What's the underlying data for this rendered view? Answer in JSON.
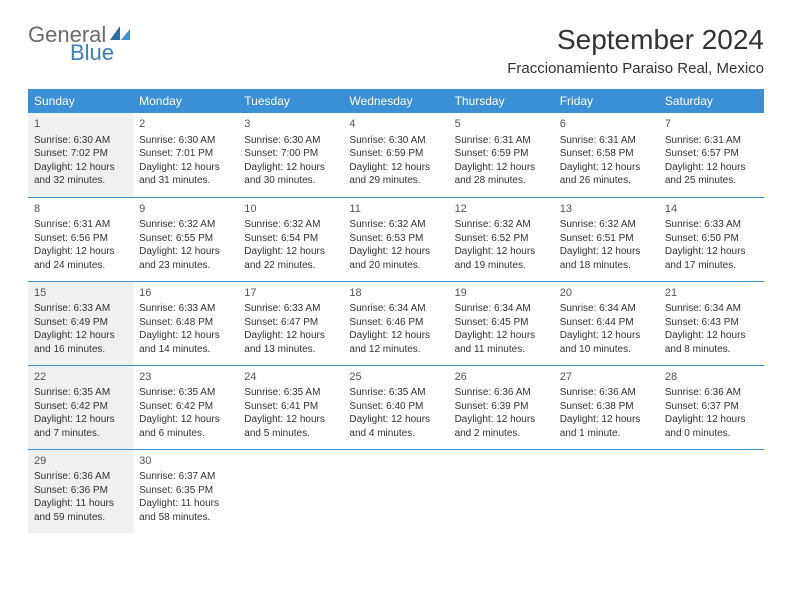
{
  "logo": {
    "text1": "General",
    "text2": "Blue"
  },
  "title": "September 2024",
  "location": "Fraccionamiento Paraiso Real, Mexico",
  "colors": {
    "header_bg": "#3b8fd4",
    "row_border": "#3b8fd4",
    "shaded_bg": "#f0f0f0",
    "logo_gray": "#6b6b6b",
    "logo_blue": "#3b7fbf"
  },
  "day_names": [
    "Sunday",
    "Monday",
    "Tuesday",
    "Wednesday",
    "Thursday",
    "Friday",
    "Saturday"
  ],
  "weeks": [
    [
      {
        "n": "1",
        "shaded": true,
        "sr": "Sunrise: 6:30 AM",
        "ss": "Sunset: 7:02 PM",
        "d1": "Daylight: 12 hours",
        "d2": "and 32 minutes."
      },
      {
        "n": "2",
        "shaded": false,
        "sr": "Sunrise: 6:30 AM",
        "ss": "Sunset: 7:01 PM",
        "d1": "Daylight: 12 hours",
        "d2": "and 31 minutes."
      },
      {
        "n": "3",
        "shaded": false,
        "sr": "Sunrise: 6:30 AM",
        "ss": "Sunset: 7:00 PM",
        "d1": "Daylight: 12 hours",
        "d2": "and 30 minutes."
      },
      {
        "n": "4",
        "shaded": false,
        "sr": "Sunrise: 6:30 AM",
        "ss": "Sunset: 6:59 PM",
        "d1": "Daylight: 12 hours",
        "d2": "and 29 minutes."
      },
      {
        "n": "5",
        "shaded": false,
        "sr": "Sunrise: 6:31 AM",
        "ss": "Sunset: 6:59 PM",
        "d1": "Daylight: 12 hours",
        "d2": "and 28 minutes."
      },
      {
        "n": "6",
        "shaded": false,
        "sr": "Sunrise: 6:31 AM",
        "ss": "Sunset: 6:58 PM",
        "d1": "Daylight: 12 hours",
        "d2": "and 26 minutes."
      },
      {
        "n": "7",
        "shaded": false,
        "sr": "Sunrise: 6:31 AM",
        "ss": "Sunset: 6:57 PM",
        "d1": "Daylight: 12 hours",
        "d2": "and 25 minutes."
      }
    ],
    [
      {
        "n": "8",
        "shaded": false,
        "sr": "Sunrise: 6:31 AM",
        "ss": "Sunset: 6:56 PM",
        "d1": "Daylight: 12 hours",
        "d2": "and 24 minutes."
      },
      {
        "n": "9",
        "shaded": false,
        "sr": "Sunrise: 6:32 AM",
        "ss": "Sunset: 6:55 PM",
        "d1": "Daylight: 12 hours",
        "d2": "and 23 minutes."
      },
      {
        "n": "10",
        "shaded": false,
        "sr": "Sunrise: 6:32 AM",
        "ss": "Sunset: 6:54 PM",
        "d1": "Daylight: 12 hours",
        "d2": "and 22 minutes."
      },
      {
        "n": "11",
        "shaded": false,
        "sr": "Sunrise: 6:32 AM",
        "ss": "Sunset: 6:53 PM",
        "d1": "Daylight: 12 hours",
        "d2": "and 20 minutes."
      },
      {
        "n": "12",
        "shaded": false,
        "sr": "Sunrise: 6:32 AM",
        "ss": "Sunset: 6:52 PM",
        "d1": "Daylight: 12 hours",
        "d2": "and 19 minutes."
      },
      {
        "n": "13",
        "shaded": false,
        "sr": "Sunrise: 6:32 AM",
        "ss": "Sunset: 6:51 PM",
        "d1": "Daylight: 12 hours",
        "d2": "and 18 minutes."
      },
      {
        "n": "14",
        "shaded": false,
        "sr": "Sunrise: 6:33 AM",
        "ss": "Sunset: 6:50 PM",
        "d1": "Daylight: 12 hours",
        "d2": "and 17 minutes."
      }
    ],
    [
      {
        "n": "15",
        "shaded": true,
        "sr": "Sunrise: 6:33 AM",
        "ss": "Sunset: 6:49 PM",
        "d1": "Daylight: 12 hours",
        "d2": "and 16 minutes."
      },
      {
        "n": "16",
        "shaded": false,
        "sr": "Sunrise: 6:33 AM",
        "ss": "Sunset: 6:48 PM",
        "d1": "Daylight: 12 hours",
        "d2": "and 14 minutes."
      },
      {
        "n": "17",
        "shaded": false,
        "sr": "Sunrise: 6:33 AM",
        "ss": "Sunset: 6:47 PM",
        "d1": "Daylight: 12 hours",
        "d2": "and 13 minutes."
      },
      {
        "n": "18",
        "shaded": false,
        "sr": "Sunrise: 6:34 AM",
        "ss": "Sunset: 6:46 PM",
        "d1": "Daylight: 12 hours",
        "d2": "and 12 minutes."
      },
      {
        "n": "19",
        "shaded": false,
        "sr": "Sunrise: 6:34 AM",
        "ss": "Sunset: 6:45 PM",
        "d1": "Daylight: 12 hours",
        "d2": "and 11 minutes."
      },
      {
        "n": "20",
        "shaded": false,
        "sr": "Sunrise: 6:34 AM",
        "ss": "Sunset: 6:44 PM",
        "d1": "Daylight: 12 hours",
        "d2": "and 10 minutes."
      },
      {
        "n": "21",
        "shaded": false,
        "sr": "Sunrise: 6:34 AM",
        "ss": "Sunset: 6:43 PM",
        "d1": "Daylight: 12 hours",
        "d2": "and 8 minutes."
      }
    ],
    [
      {
        "n": "22",
        "shaded": true,
        "sr": "Sunrise: 6:35 AM",
        "ss": "Sunset: 6:42 PM",
        "d1": "Daylight: 12 hours",
        "d2": "and 7 minutes."
      },
      {
        "n": "23",
        "shaded": false,
        "sr": "Sunrise: 6:35 AM",
        "ss": "Sunset: 6:42 PM",
        "d1": "Daylight: 12 hours",
        "d2": "and 6 minutes."
      },
      {
        "n": "24",
        "shaded": false,
        "sr": "Sunrise: 6:35 AM",
        "ss": "Sunset: 6:41 PM",
        "d1": "Daylight: 12 hours",
        "d2": "and 5 minutes."
      },
      {
        "n": "25",
        "shaded": false,
        "sr": "Sunrise: 6:35 AM",
        "ss": "Sunset: 6:40 PM",
        "d1": "Daylight: 12 hours",
        "d2": "and 4 minutes."
      },
      {
        "n": "26",
        "shaded": false,
        "sr": "Sunrise: 6:36 AM",
        "ss": "Sunset: 6:39 PM",
        "d1": "Daylight: 12 hours",
        "d2": "and 2 minutes."
      },
      {
        "n": "27",
        "shaded": false,
        "sr": "Sunrise: 6:36 AM",
        "ss": "Sunset: 6:38 PM",
        "d1": "Daylight: 12 hours",
        "d2": "and 1 minute."
      },
      {
        "n": "28",
        "shaded": false,
        "sr": "Sunrise: 6:36 AM",
        "ss": "Sunset: 6:37 PM",
        "d1": "Daylight: 12 hours",
        "d2": "and 0 minutes."
      }
    ],
    [
      {
        "n": "29",
        "shaded": true,
        "sr": "Sunrise: 6:36 AM",
        "ss": "Sunset: 6:36 PM",
        "d1": "Daylight: 11 hours",
        "d2": "and 59 minutes."
      },
      {
        "n": "30",
        "shaded": false,
        "sr": "Sunrise: 6:37 AM",
        "ss": "Sunset: 6:35 PM",
        "d1": "Daylight: 11 hours",
        "d2": "and 58 minutes."
      },
      null,
      null,
      null,
      null,
      null
    ]
  ]
}
